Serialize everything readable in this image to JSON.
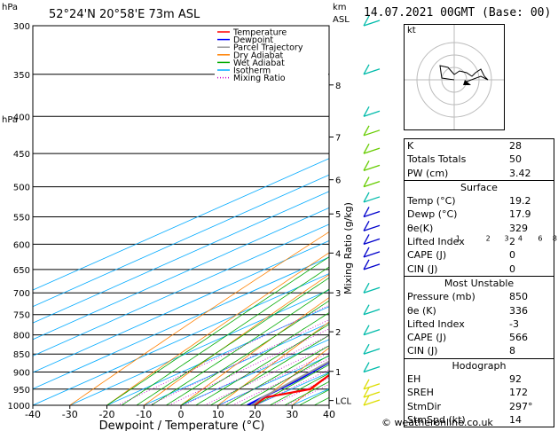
{
  "header": {
    "left_unit": "hPa",
    "location": "52°24'N  20°58'E  73m  ASL",
    "km_label": "km",
    "asl_label": "ASL",
    "timestamp": "14.07.2021  00GMT  (Base: 00)"
  },
  "axes": {
    "ylabel_left": "hPa",
    "xlabel": "Dewpoint / Temperature (°C)",
    "ylabel_right": "Mixing Ratio (g/kg)"
  },
  "legend": [
    {
      "label": "Temperature",
      "color": "#ff0000"
    },
    {
      "label": "Dewpoint",
      "color": "#0000ff"
    },
    {
      "label": "Parcel Trajectory",
      "color": "#999999"
    },
    {
      "label": "Dry Adiabat",
      "color": "#ff8000"
    },
    {
      "label": "Wet Adiabat",
      "color": "#00aa00"
    },
    {
      "label": "Isotherm",
      "color": "#00aaff"
    },
    {
      "label": "Mixing Ratio",
      "color": "#cc00cc"
    }
  ],
  "chart_data": {
    "type": "line",
    "title": "",
    "x_ticks": [
      -40,
      -30,
      -20,
      -10,
      0,
      10,
      20,
      30,
      40
    ],
    "p_ticks": [
      300,
      350,
      400,
      450,
      500,
      550,
      600,
      650,
      700,
      750,
      800,
      850,
      900,
      950,
      1000
    ],
    "xlim": [
      -40,
      40
    ],
    "plim": [
      300,
      1000
    ],
    "km_ticks": [
      {
        "p": 362,
        "label": "8"
      },
      {
        "p": 427,
        "label": "7"
      },
      {
        "p": 489,
        "label": "6"
      },
      {
        "p": 545,
        "label": "5"
      },
      {
        "p": 617,
        "label": "4"
      },
      {
        "p": 700,
        "label": "3"
      },
      {
        "p": 792,
        "label": "2"
      },
      {
        "p": 898,
        "label": "1"
      },
      {
        "p": 985,
        "label": "LCL"
      }
    ],
    "mixing_ratio_labels": [
      "1",
      "2",
      "3",
      "4",
      "6",
      "8",
      "10",
      "15",
      "20",
      "25"
    ],
    "series": [
      {
        "name": "Temperature",
        "color": "#ff0000",
        "points": [
          [
            1000,
            19.6
          ],
          [
            975,
            18.0
          ],
          [
            950,
            25.0
          ],
          [
            925,
            23.0
          ],
          [
            900,
            21.0
          ],
          [
            850,
            17.0
          ],
          [
            800,
            13.5
          ],
          [
            780,
            14.5
          ],
          [
            750,
            12.8
          ],
          [
            700,
            9.5
          ],
          [
            650,
            6.0
          ],
          [
            600,
            3.0
          ],
          [
            550,
            -1.5
          ],
          [
            500,
            -6.5
          ],
          [
            450,
            -11.5
          ],
          [
            400,
            -17.5
          ],
          [
            350,
            -25.5
          ],
          [
            300,
            -35.0
          ]
        ]
      },
      {
        "name": "Dewpoint",
        "color": "#0000ff",
        "points": [
          [
            1000,
            17.9
          ],
          [
            975,
            17.2
          ],
          [
            950,
            16.8
          ],
          [
            925,
            16.3
          ],
          [
            900,
            15.2
          ],
          [
            850,
            12.8
          ],
          [
            800,
            8.6
          ],
          [
            780,
            -7.0
          ],
          [
            750,
            -12.0
          ],
          [
            700,
            -3.0
          ],
          [
            650,
            4.4
          ],
          [
            620,
            -0.5
          ],
          [
            600,
            -8.0
          ],
          [
            550,
            -12.0
          ],
          [
            525,
            -3.5
          ],
          [
            500,
            -12.5
          ],
          [
            470,
            -27.0
          ],
          [
            450,
            -7.5
          ],
          [
            400,
            -12.5
          ],
          [
            350,
            -26.0
          ],
          [
            300,
            -30.0
          ]
        ]
      },
      {
        "name": "Parcel Trajectory",
        "color": "#999999",
        "points": [
          [
            1000,
            19.2
          ],
          [
            975,
            17.2
          ],
          [
            950,
            16.4
          ],
          [
            900,
            14.6
          ],
          [
            850,
            12.7
          ],
          [
            800,
            10.6
          ],
          [
            750,
            8.1
          ],
          [
            700,
            5.3
          ],
          [
            650,
            2.2
          ],
          [
            600,
            -1.5
          ],
          [
            550,
            -5.8
          ],
          [
            500,
            -10.9
          ],
          [
            450,
            -16.7
          ],
          [
            400,
            -23.5
          ],
          [
            350,
            -31.5
          ],
          [
            300,
            -40.9
          ]
        ]
      }
    ]
  },
  "indices": {
    "rows": [
      {
        "label": "K",
        "value": "28"
      },
      {
        "label": "Totals Totals",
        "value": "50"
      },
      {
        "label": "PW (cm)",
        "value": "3.42"
      }
    ]
  },
  "surface": {
    "title": "Surface",
    "rows": [
      {
        "label": "Temp (°C)",
        "value": "19.2"
      },
      {
        "label": "Dewp (°C)",
        "value": "17.9"
      },
      {
        "label": "θe(K)",
        "value": "329"
      },
      {
        "label": "Lifted Index",
        "value": "2"
      },
      {
        "label": "CAPE (J)",
        "value": "0"
      },
      {
        "label": "CIN (J)",
        "value": "0"
      }
    ]
  },
  "most_unstable": {
    "title": "Most Unstable",
    "rows": [
      {
        "label": "Pressure (mb)",
        "value": "850"
      },
      {
        "label": "θe (K)",
        "value": "336"
      },
      {
        "label": "Lifted Index",
        "value": "-3"
      },
      {
        "label": "CAPE (J)",
        "value": "566"
      },
      {
        "label": "CIN (J)",
        "value": "8"
      }
    ]
  },
  "hodograph": {
    "title": "Hodograph",
    "unit_label": "kt",
    "rows": [
      {
        "label": "EH",
        "value": "92"
      },
      {
        "label": "SREH",
        "value": "172"
      },
      {
        "label": "StmDir",
        "value": "297°"
      },
      {
        "label": "StmSpd (kt)",
        "value": "14"
      }
    ]
  },
  "footer": {
    "copyright": "© weatheronline.co.uk"
  }
}
